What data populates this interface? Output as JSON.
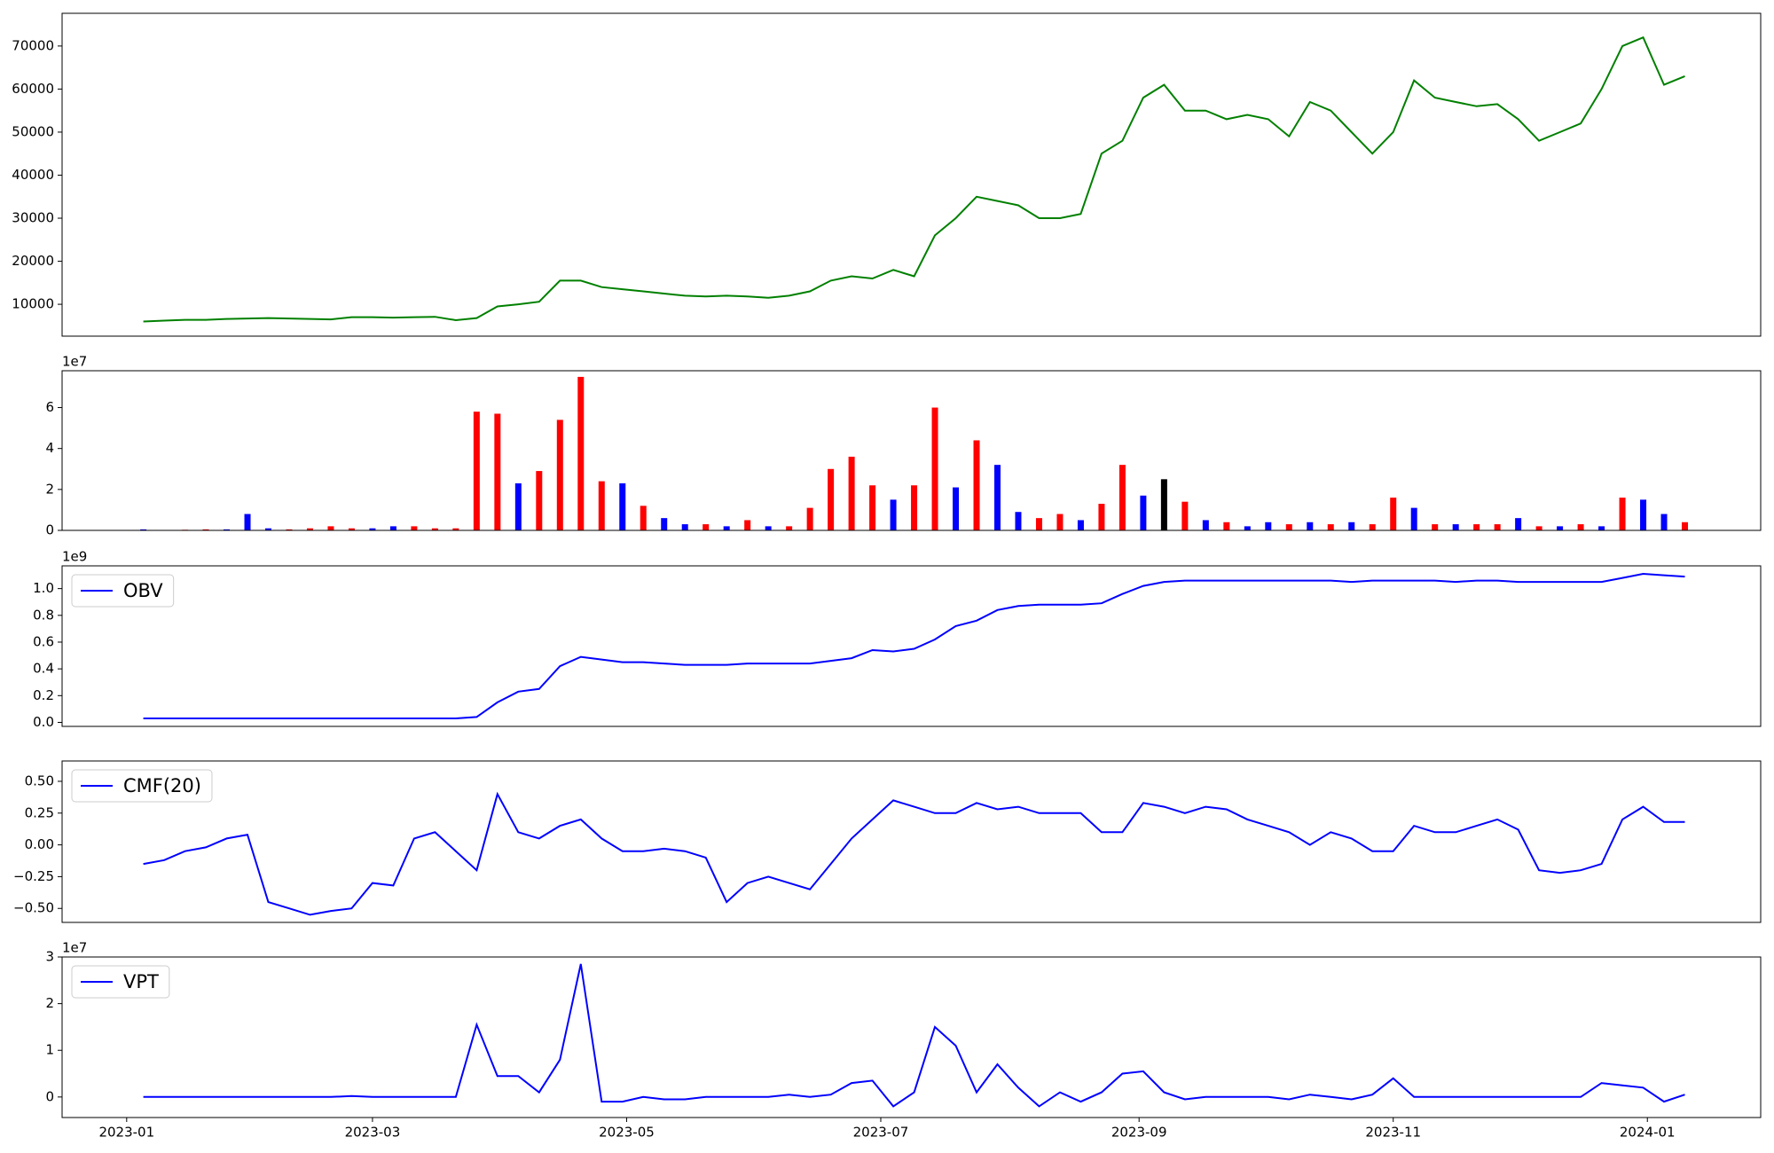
{
  "chart_data": {
    "type": "multi",
    "xlim": [
      -15.5,
      392.2
    ],
    "xticks": [
      {
        "value": 0,
        "label": "2023-01"
      },
      {
        "value": 59,
        "label": "2023-03"
      },
      {
        "value": 120,
        "label": "2023-05"
      },
      {
        "value": 181,
        "label": "2023-07"
      },
      {
        "value": 243,
        "label": "2023-09"
      },
      {
        "value": 304,
        "label": "2023-11"
      },
      {
        "value": 365,
        "label": "2024-01"
      }
    ],
    "x": [
      4,
      9,
      14,
      19,
      24,
      29,
      34,
      39,
      44,
      49,
      54,
      59,
      64,
      69,
      74,
      79,
      84,
      89,
      94,
      99,
      104,
      109,
      114,
      119,
      124,
      129,
      134,
      139,
      144,
      149,
      154,
      159,
      164,
      169,
      174,
      179,
      184,
      189,
      194,
      199,
      204,
      209,
      214,
      219,
      224,
      229,
      234,
      239,
      244,
      249,
      254,
      259,
      264,
      269,
      274,
      279,
      284,
      289,
      294,
      299,
      304,
      309,
      314,
      319,
      324,
      329,
      334,
      339,
      344,
      349,
      354,
      359,
      364,
      369,
      374
    ],
    "panels": [
      {
        "type": "line",
        "ylim": [
          2600,
          77600
        ],
        "yticks": [
          10000,
          20000,
          30000,
          40000,
          50000,
          60000,
          70000
        ],
        "series": [
          {
            "color": "green",
            "values": [
              6000,
              6200,
              6400,
              6400,
              6600,
              6700,
              6800,
              6700,
              6600,
              6500,
              7000,
              7000,
              6900,
              7000,
              7100,
              6300,
              6800,
              9500,
              10000,
              10600,
              15500,
              15500,
              14000,
              13500,
              13000,
              12500,
              12000,
              11800,
              12000,
              11800,
              11500,
              12000,
              13000,
              15500,
              16500,
              16000,
              18000,
              16500,
              26000,
              30000,
              35000,
              34000,
              33000,
              30000,
              30000,
              31000,
              45000,
              48000,
              58000,
              61000,
              55000,
              55000,
              53000,
              54000,
              53000,
              49000,
              57000,
              55000,
              50000,
              45000,
              50000,
              62000,
              58000,
              57000,
              56000,
              56500,
              53000,
              48000,
              50000,
              52000,
              60000,
              70000,
              72000,
              61000,
              63000
            ]
          }
        ]
      },
      {
        "type": "bar",
        "ylim": [
          0,
          7.8
        ],
        "yticks": [
          0,
          2,
          4,
          6
        ],
        "offset_label": "1e7",
        "values": [
          0.05,
          0.02,
          0.03,
          0.05,
          0.05,
          0.8,
          0.1,
          0.05,
          0.1,
          0.2,
          0.1,
          0.1,
          0.2,
          0.2,
          0.1,
          0.1,
          5.8,
          5.7,
          2.3,
          2.9,
          5.4,
          7.5,
          2.4,
          2.3,
          1.2,
          0.6,
          0.3,
          0.3,
          0.2,
          0.5,
          0.2,
          0.2,
          1.1,
          3.0,
          3.6,
          2.2,
          1.5,
          2.2,
          6.0,
          2.1,
          4.4,
          3.2,
          0.9,
          0.6,
          0.8,
          0.5,
          1.3,
          3.2,
          1.7,
          2.5,
          1.4,
          0.5,
          0.4,
          0.2,
          0.4,
          0.3,
          0.4,
          0.3,
          0.4,
          0.3,
          1.6,
          1.1,
          0.3,
          0.3,
          0.3,
          0.3,
          0.6,
          0.2,
          0.2,
          0.3,
          0.2,
          1.6,
          1.5,
          0.8,
          0.4
        ],
        "colors": [
          "blue",
          "red",
          "red",
          "red",
          "blue",
          "blue",
          "blue",
          "red",
          "red",
          "red",
          "red",
          "blue",
          "blue",
          "red",
          "red",
          "red",
          "red",
          "red",
          "blue",
          "red",
          "red",
          "red",
          "red",
          "blue",
          "red",
          "blue",
          "blue",
          "red",
          "blue",
          "red",
          "blue",
          "red",
          "red",
          "red",
          "red",
          "red",
          "blue",
          "red",
          "red",
          "blue",
          "red",
          "blue",
          "blue",
          "red",
          "red",
          "blue",
          "red",
          "red",
          "blue",
          "black",
          "red",
          "blue",
          "red",
          "blue",
          "blue",
          "red",
          "blue",
          "red",
          "blue",
          "red",
          "red",
          "blue",
          "red",
          "blue",
          "red",
          "red",
          "blue",
          "red",
          "blue",
          "red",
          "blue",
          "red",
          "blue",
          "blue",
          "red"
        ]
      },
      {
        "type": "line",
        "ylim": [
          -0.03,
          1.17
        ],
        "yticks": [
          {
            "value": 0,
            "label": "0.0"
          },
          {
            "value": 0.2,
            "label": "0.2"
          },
          {
            "value": 0.4,
            "label": "0.4"
          },
          {
            "value": 0.6,
            "label": "0.6"
          },
          {
            "value": 0.8,
            "label": "0.8"
          },
          {
            "value": 1,
            "label": "1.0"
          }
        ],
        "offset_label": "1e9",
        "legend": "upper left",
        "series": [
          {
            "name": "OBV",
            "color": "blue",
            "values": [
              0.03,
              0.03,
              0.03,
              0.03,
              0.03,
              0.03,
              0.03,
              0.03,
              0.03,
              0.03,
              0.03,
              0.03,
              0.03,
              0.03,
              0.03,
              0.03,
              0.04,
              0.15,
              0.23,
              0.25,
              0.42,
              0.49,
              0.47,
              0.45,
              0.45,
              0.44,
              0.43,
              0.43,
              0.43,
              0.44,
              0.44,
              0.44,
              0.44,
              0.46,
              0.48,
              0.54,
              0.53,
              0.55,
              0.62,
              0.72,
              0.76,
              0.84,
              0.87,
              0.88,
              0.88,
              0.88,
              0.89,
              0.96,
              1.02,
              1.05,
              1.06,
              1.06,
              1.06,
              1.06,
              1.06,
              1.06,
              1.06,
              1.06,
              1.05,
              1.06,
              1.06,
              1.06,
              1.06,
              1.05,
              1.06,
              1.06,
              1.05,
              1.05,
              1.05,
              1.05,
              1.05,
              1.08,
              1.11,
              1.1,
              1.09
            ]
          }
        ]
      },
      {
        "type": "line",
        "ylim": [
          -0.61,
          0.66
        ],
        "yticks": [
          {
            "value": -0.5,
            "label": "−0.50"
          },
          {
            "value": -0.25,
            "label": "−0.25"
          },
          {
            "value": 0,
            "label": "0.00"
          },
          {
            "value": 0.25,
            "label": "0.25"
          },
          {
            "value": 0.5,
            "label": "0.50"
          }
        ],
        "legend": "upper left",
        "series": [
          {
            "name": "CMF(20)",
            "color": "blue",
            "values": [
              -0.15,
              -0.12,
              -0.05,
              -0.02,
              0.05,
              0.08,
              -0.45,
              -0.5,
              -0.55,
              -0.52,
              -0.5,
              -0.3,
              -0.32,
              0.05,
              0.1,
              -0.05,
              -0.2,
              0.4,
              0.1,
              0.05,
              0.15,
              0.2,
              0.05,
              -0.05,
              -0.05,
              -0.03,
              -0.05,
              -0.1,
              -0.45,
              -0.3,
              -0.25,
              -0.3,
              -0.35,
              -0.15,
              0.05,
              0.2,
              0.35,
              0.3,
              0.25,
              0.25,
              0.33,
              0.28,
              0.3,
              0.25,
              0.25,
              0.25,
              0.1,
              0.1,
              0.33,
              0.3,
              0.25,
              0.3,
              0.28,
              0.2,
              0.15,
              0.1,
              0.0,
              0.1,
              0.05,
              -0.05,
              -0.05,
              0.15,
              0.1,
              0.1,
              0.15,
              0.2,
              0.12,
              -0.2,
              -0.22,
              -0.2,
              -0.15,
              0.2,
              0.3,
              0.18,
              0.18
            ]
          }
        ]
      },
      {
        "type": "line",
        "ylim": [
          -0.44,
          3.0
        ],
        "yticks": [
          0,
          1,
          2,
          3
        ],
        "offset_label": "1e7",
        "legend": "upper left",
        "series": [
          {
            "name": "VPT",
            "color": "blue",
            "values": [
              0,
              0,
              0,
              0,
              0,
              0,
              0,
              0,
              0,
              0,
              0.02,
              0,
              0,
              0,
              0,
              0,
              1.55,
              0.45,
              0.45,
              0.1,
              0.8,
              2.85,
              -0.1,
              -0.1,
              0,
              -0.05,
              -0.05,
              0,
              0,
              0,
              0,
              0.05,
              0,
              0.05,
              0.3,
              0.35,
              -0.2,
              0.1,
              1.5,
              1.1,
              0.1,
              0.7,
              0.2,
              -0.2,
              0.1,
              -0.1,
              0.1,
              0.5,
              0.55,
              0.1,
              -0.05,
              0,
              0,
              0,
              0,
              -0.05,
              0.05,
              0,
              -0.05,
              0.05,
              0.4,
              0,
              0,
              0,
              0,
              0,
              0,
              0,
              0,
              0,
              0.3,
              0.25,
              0.2,
              -0.1,
              0.05
            ]
          }
        ]
      }
    ]
  }
}
